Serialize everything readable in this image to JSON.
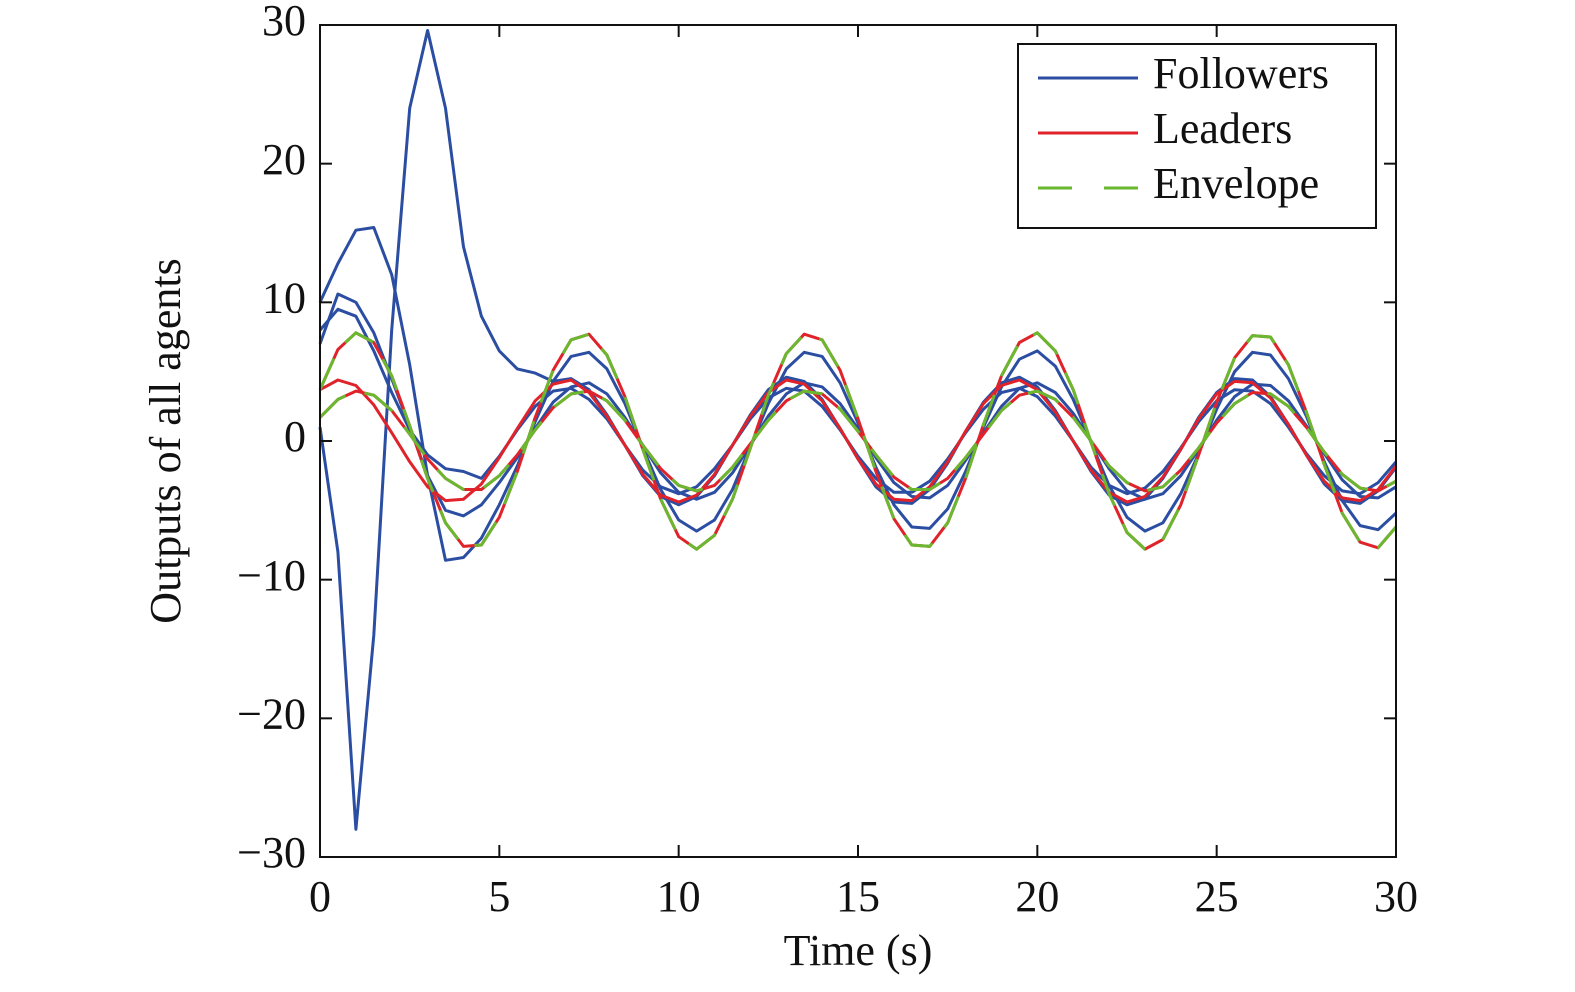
{
  "chart_data": {
    "type": "line",
    "xlabel": "Time (s)",
    "ylabel": "Outputs of all agents",
    "xlim": [
      0,
      30
    ],
    "ylim": [
      -30,
      30
    ],
    "xticks": [
      0,
      5,
      10,
      15,
      20,
      25,
      30
    ],
    "yticks": [
      {
        "value": -30,
        "label": "−30"
      },
      {
        "value": -20,
        "label": "−20"
      },
      {
        "value": -10,
        "label": "−10"
      },
      0,
      10,
      20,
      30
    ],
    "legend": "top-right",
    "grid": false,
    "x": [
      0,
      0.5,
      1,
      1.5,
      2,
      2.5,
      3,
      3.5,
      4,
      4.5,
      5,
      5.5,
      6,
      6.5,
      7,
      7.5,
      8,
      8.5,
      9,
      9.5,
      10,
      10.5,
      11,
      11.5,
      12,
      12.5,
      13,
      13.5,
      14,
      14.5,
      15,
      15.5,
      16,
      16.5,
      17,
      17.5,
      18,
      18.5,
      19,
      19.5,
      20,
      20.5,
      21,
      21.5,
      22,
      22.5,
      23,
      23.5,
      24,
      24.5,
      25,
      25.5,
      26,
      26.5,
      27,
      27.5,
      28,
      28.5,
      29,
      29.5,
      30
    ],
    "series": [
      {
        "name": "Followers",
        "color": "#2b4ea2",
        "dashed": false,
        "lines": [
          [
            1.0,
            -8.0,
            -28.0,
            -14.0,
            8.0,
            24.0,
            29.6,
            24.0,
            14.0,
            9.0,
            6.5,
            5.2,
            4.9,
            4.3,
            4.5,
            3.7,
            1.9,
            -0.3,
            -2.5,
            -4.0,
            -4.6,
            -4.0,
            -2.5,
            -0.3,
            1.9,
            3.7,
            4.6,
            4.3,
            3.0,
            0.9,
            -1.3,
            -3.3,
            -4.4,
            -4.5,
            -3.5,
            -1.6,
            0.7,
            2.8,
            4.2,
            4.6,
            3.9,
            2.2,
            0.0,
            -2.2,
            -3.9,
            -4.6,
            -4.2,
            -2.7,
            -0.6,
            1.7,
            3.5,
            4.5,
            4.4,
            3.2,
            1.2,
            -1.0,
            -3.1,
            -4.3,
            -4.5,
            -3.6,
            -1.9
          ],
          [
            10.0,
            12.8,
            15.2,
            15.4,
            12.0,
            5.5,
            -2.5,
            -8.6,
            -8.4,
            -7.0,
            -4.6,
            -1.8,
            1.4,
            4.3,
            6.1,
            6.4,
            5.2,
            2.7,
            -0.5,
            -3.5,
            -5.7,
            -6.5,
            -5.7,
            -3.5,
            -0.4,
            2.7,
            5.2,
            6.4,
            6.1,
            4.2,
            1.3,
            -1.9,
            -4.6,
            -6.2,
            -6.3,
            -4.9,
            -2.2,
            1.0,
            3.9,
            5.9,
            6.5,
            5.4,
            3.0,
            -0.1,
            -3.2,
            -5.5,
            -6.5,
            -5.9,
            -3.8,
            -0.9,
            2.3,
            5.0,
            6.4,
            6.2,
            4.5,
            1.8,
            -1.5,
            -4.3,
            -6.1,
            -6.4,
            -5.2
          ],
          [
            7.0,
            10.6,
            10.0,
            7.8,
            4.5,
            1.0,
            -2.5,
            -5.0,
            -5.4,
            -4.6,
            -3.0,
            -1.2,
            0.9,
            2.8,
            3.9,
            4.2,
            3.4,
            1.7,
            -0.3,
            -2.3,
            -3.7,
            -4.2,
            -3.7,
            -2.3,
            -0.3,
            1.8,
            3.4,
            4.2,
            3.9,
            2.7,
            0.9,
            -1.2,
            -3.0,
            -4.0,
            -4.1,
            -3.2,
            -1.4,
            0.6,
            2.5,
            3.8,
            4.2,
            3.5,
            2.0,
            0.0,
            -2.0,
            -3.6,
            -4.2,
            -3.8,
            -2.5,
            -0.6,
            1.5,
            3.2,
            4.1,
            4.0,
            2.9,
            1.1,
            -0.9,
            -2.8,
            -4.0,
            -4.1,
            -3.3
          ],
          [
            8.0,
            9.5,
            9.0,
            6.5,
            3.5,
            0.8,
            -1.0,
            -2.0,
            -2.2,
            -2.7,
            -1.1,
            0.8,
            2.5,
            3.6,
            3.8,
            3.0,
            1.6,
            -0.3,
            -2.1,
            -3.3,
            -3.8,
            -3.3,
            -2.0,
            -0.3,
            1.6,
            3.1,
            3.8,
            3.6,
            2.5,
            0.8,
            -1.1,
            -2.7,
            -3.7,
            -3.7,
            -2.9,
            -1.3,
            0.6,
            2.3,
            3.5,
            3.8,
            3.2,
            1.8,
            0.0,
            -1.9,
            -3.2,
            -3.8,
            -3.4,
            -2.2,
            -0.5,
            1.4,
            2.9,
            3.7,
            3.6,
            2.7,
            1.0,
            -0.9,
            -2.5,
            -3.6,
            -3.8,
            -3.0,
            -1.5
          ]
        ]
      },
      {
        "name": "Leaders",
        "color": "#e0232b",
        "dashed": false,
        "lines": [
          [
            3.7,
            6.6,
            7.8,
            7.1,
            4.7,
            1.1,
            -2.7,
            -5.9,
            -7.6,
            -7.5,
            -5.5,
            -2.2,
            1.7,
            5.1,
            7.3,
            7.7,
            6.2,
            3.2,
            -0.6,
            -4.2,
            -6.9,
            -7.8,
            -6.8,
            -4.2,
            -0.5,
            3.3,
            6.3,
            7.7,
            7.3,
            5.1,
            1.6,
            -2.2,
            -5.6,
            -7.5,
            -7.6,
            -5.9,
            -2.7,
            1.2,
            4.7,
            7.1,
            7.8,
            6.5,
            3.7,
            -0.1,
            -3.8,
            -6.6,
            -7.8,
            -7.1,
            -4.6,
            -1.0,
            2.8,
            6.0,
            7.6,
            7.5,
            5.5,
            2.1,
            -1.7,
            -5.2,
            -7.3,
            -7.7,
            -6.2
          ],
          [
            3.7,
            4.4,
            4.0,
            2.6,
            0.6,
            -1.5,
            -3.3,
            -4.3,
            -4.2,
            -3.1,
            -1.2,
            0.9,
            2.9,
            4.1,
            4.4,
            3.5,
            1.8,
            -0.3,
            -2.4,
            -3.9,
            -4.4,
            -3.9,
            -2.4,
            -0.3,
            1.8,
            3.5,
            4.4,
            4.1,
            2.9,
            0.9,
            -1.3,
            -3.1,
            -4.2,
            -4.3,
            -3.3,
            -1.5,
            0.7,
            2.7,
            4.0,
            4.4,
            3.7,
            2.1,
            0.0,
            -2.1,
            -3.7,
            -4.4,
            -4.0,
            -2.6,
            -0.6,
            1.6,
            3.4,
            4.3,
            4.2,
            3.1,
            1.2,
            -1.0,
            -2.9,
            -4.1,
            -4.3,
            -3.5,
            -1.8
          ],
          [
            1.7,
            3.0,
            3.6,
            3.3,
            2.2,
            0.5,
            -1.3,
            -2.7,
            -3.5,
            -3.5,
            -2.5,
            -1.0,
            0.8,
            2.4,
            3.4,
            3.6,
            2.9,
            1.5,
            -0.3,
            -2.0,
            -3.2,
            -3.6,
            -3.2,
            -1.9,
            -0.2,
            1.5,
            2.9,
            3.6,
            3.4,
            2.3,
            0.7,
            -1.0,
            -2.6,
            -3.5,
            -3.5,
            -2.7,
            -1.2,
            0.5,
            2.2,
            3.3,
            3.6,
            3.0,
            1.7,
            0.0,
            -1.8,
            -3.0,
            -3.6,
            -3.3,
            -2.1,
            -0.5,
            1.3,
            2.7,
            3.5,
            3.4,
            2.5,
            1.0,
            -0.8,
            -2.4,
            -3.4,
            -3.6,
            -2.9
          ]
        ]
      },
      {
        "name": "Envelope",
        "color": "#6ab82f",
        "dashed": true,
        "lines": [
          [
            3.7,
            6.6,
            7.8,
            7.1,
            4.7,
            1.1,
            -2.7,
            -5.9,
            -7.6,
            -7.5,
            -5.5,
            -2.2,
            1.7,
            5.1,
            7.3,
            7.7,
            6.2,
            3.2,
            -0.6,
            -4.2,
            -6.9,
            -7.8,
            -6.8,
            -4.2,
            -0.5,
            3.3,
            6.3,
            7.7,
            7.3,
            5.1,
            1.6,
            -2.2,
            -5.6,
            -7.5,
            -7.6,
            -5.9,
            -2.7,
            1.2,
            4.7,
            7.1,
            7.8,
            6.5,
            3.7,
            -0.1,
            -3.8,
            -6.6,
            -7.8,
            -7.1,
            -4.6,
            -1.0,
            2.8,
            6.0,
            7.6,
            7.5,
            5.5,
            2.1,
            -1.7,
            -5.2,
            -7.3,
            -7.7,
            -6.2
          ],
          [
            1.7,
            3.0,
            3.6,
            3.3,
            2.2,
            0.5,
            -1.3,
            -2.7,
            -3.5,
            -3.5,
            -2.5,
            -1.0,
            0.8,
            2.4,
            3.4,
            3.6,
            2.9,
            1.5,
            -0.3,
            -2.0,
            -3.2,
            -3.6,
            -3.2,
            -1.9,
            -0.2,
            1.5,
            2.9,
            3.6,
            3.4,
            2.3,
            0.7,
            -1.0,
            -2.6,
            -3.5,
            -3.5,
            -2.7,
            -1.2,
            0.5,
            2.2,
            3.3,
            3.6,
            3.0,
            1.7,
            0.0,
            -1.8,
            -3.0,
            -3.6,
            -3.3,
            -2.1,
            -0.5,
            1.3,
            2.7,
            3.5,
            3.4,
            2.5,
            1.0,
            -0.8,
            -2.4,
            -3.4,
            -3.6,
            -2.9
          ]
        ]
      }
    ]
  }
}
